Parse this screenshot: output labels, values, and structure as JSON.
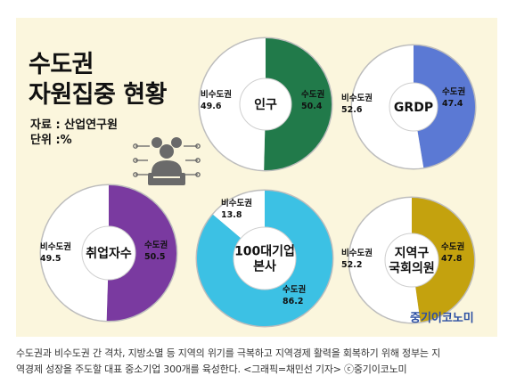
{
  "title_line1": "수도권",
  "title_line2": "자원집중 현황",
  "source_line1": "자료 : 산업연구원",
  "source_line2": "단위 :%",
  "brand": "중기이코노미",
  "caption_line1": "수도권과 비수도권 간 격차, 지방소멸 등 지역의 위기를 극복하고 지역경제 활력을 회복하기 위해 정부는 지",
  "caption_line2": "역경제 성장을 주도할 대표 중소기업 300개를 육성한다. <그래픽=채민선 기자>    ⓒ중기이코노미",
  "colors": {
    "panel_bg": "#fbf6dd",
    "rest": "#ffffff"
  },
  "chart_data": [
    {
      "type": "pie",
      "center_label": "인구",
      "slices": [
        {
          "label": "수도권",
          "value": 50.4,
          "value_text": "50.4",
          "color": "#217a4a"
        },
        {
          "label": "비수도권",
          "value": 49.6,
          "value_text": "49.6",
          "color": "#ffffff"
        }
      ]
    },
    {
      "type": "pie",
      "center_label": "GRDP",
      "slices": [
        {
          "label": "수도권",
          "value": 47.4,
          "value_text": "47.4",
          "color": "#5b79d4"
        },
        {
          "label": "비수도권",
          "value": 52.6,
          "value_text": "52.6",
          "color": "#ffffff"
        }
      ]
    },
    {
      "type": "pie",
      "center_label": "취업자수",
      "slices": [
        {
          "label": "수도권",
          "value": 50.5,
          "value_text": "50.5",
          "color": "#7a3aa0"
        },
        {
          "label": "비수도권",
          "value": 49.5,
          "value_text": "49.5",
          "color": "#ffffff"
        }
      ]
    },
    {
      "type": "pie",
      "center_label": "100대기업 본사",
      "slices": [
        {
          "label": "수도권",
          "value": 86.2,
          "value_text": "86.2",
          "color": "#3cc1e4"
        },
        {
          "label": "비수도권",
          "value": 13.8,
          "value_text": "13.8",
          "color": "#ffffff"
        }
      ]
    },
    {
      "type": "pie",
      "center_label": "지역구 국회의원",
      "slices": [
        {
          "label": "수도권",
          "value": 47.8,
          "value_text": "47.8",
          "color": "#c4a20e"
        },
        {
          "label": "비수도권",
          "value": 52.2,
          "value_text": "52.2",
          "color": "#ffffff"
        }
      ]
    }
  ]
}
